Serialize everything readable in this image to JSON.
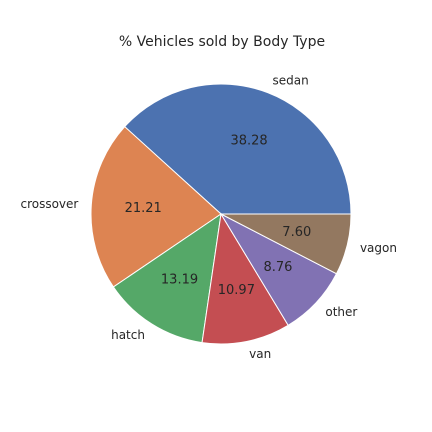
{
  "chart_data": {
    "type": "pie",
    "title": "% Vehicles sold by Body Type",
    "categories": [
      "sedan",
      "crossover",
      "hatch",
      "van",
      "other",
      "vagon"
    ],
    "values": [
      38.28,
      21.21,
      13.19,
      10.97,
      8.76,
      7.6
    ],
    "value_labels": [
      "38.28",
      "21.21",
      "13.19",
      "10.97",
      "8.76",
      "7.60"
    ],
    "colors": [
      "#4c72b0",
      "#dd8452",
      "#55a868",
      "#c44e52",
      "#8172b3",
      "#937860"
    ],
    "start_angle_deg": 0,
    "direction": "counterclockwise",
    "legend": "none"
  }
}
